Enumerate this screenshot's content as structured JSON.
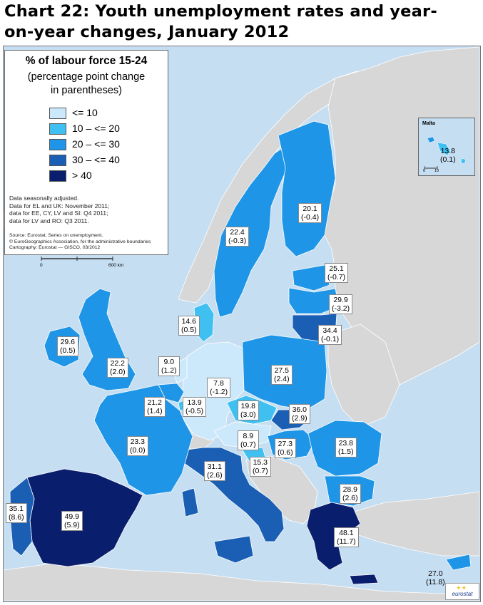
{
  "title": "Chart 22: Youth unemployment rates and year-on-year changes, January 2012",
  "title_line1": "Chart 22: Youth unemployment rates and year-",
  "title_line2": "on-year changes, January 2012",
  "colors": {
    "sea": "#c6def2",
    "non_eu": "#d7d7d7",
    "le10": "#cce9fb",
    "c10_20": "#3fc0f0",
    "c20_30": "#1e95e6",
    "c30_40": "#1a5fb4",
    "gt40": "#0a1e6e"
  },
  "legend": {
    "title": "% of labour force 15-24",
    "subtitle1": "(percentage point change",
    "subtitle2": "in parentheses)",
    "items": [
      {
        "label": "<= 10",
        "color": "#cce9fb"
      },
      {
        "label": "10 – <= 20",
        "color": "#3fc0f0"
      },
      {
        "label": "20 – <= 30",
        "color": "#1e95e6"
      },
      {
        "label": "30 – <= 40",
        "color": "#1a5fb4"
      },
      {
        "label": "> 40",
        "color": "#0a1e6e"
      }
    ],
    "notes": [
      "Data seasonally adjusted.",
      "Data for EL and UK: November 2011;",
      "data for EE, CY, LV and SI: Q4 2011;",
      "data for LV and RO: Q3 2011."
    ],
    "source": [
      "Source: Eurostat, Series on unemployment.",
      "© EuroGeographics Association, for the administrative boundaries",
      "Cartography: Eurostat — GISCO, 03/2012"
    ]
  },
  "scale": {
    "zero": "0",
    "end": "600 km"
  },
  "inset": {
    "title": "Malta",
    "value": "13.8",
    "change": "(0.1)",
    "scale_zero": "0",
    "scale_end": "10"
  },
  "logo": "eurostat",
  "countries": [
    {
      "id": "IE",
      "value": "29.6",
      "change": "(0.5)",
      "color": "#1e95e6"
    },
    {
      "id": "UK",
      "value": "22.2",
      "change": "(2.0)",
      "color": "#1e95e6"
    },
    {
      "id": "PT",
      "value": "35.1",
      "change": "(8.6)",
      "color": "#1a5fb4"
    },
    {
      "id": "ES",
      "value": "49.9",
      "change": "(5.9)",
      "color": "#0a1e6e"
    },
    {
      "id": "FR",
      "value": "23.3",
      "change": "(0.0)",
      "color": "#1e95e6"
    },
    {
      "id": "BE",
      "value": "21.2",
      "change": "(1.4)",
      "color": "#1e95e6"
    },
    {
      "id": "NL",
      "value": "9.0",
      "change": "(1.2)",
      "color": "#cce9fb"
    },
    {
      "id": "LU",
      "value": "13.9",
      "change": "(-0.5)",
      "color": "#3fc0f0"
    },
    {
      "id": "DE",
      "value": "7.8",
      "change": "(-1.2)",
      "color": "#cce9fb"
    },
    {
      "id": "DK",
      "value": "14.6",
      "change": "(0.5)",
      "color": "#3fc0f0"
    },
    {
      "id": "SE",
      "value": "22.4",
      "change": "(-0.3)",
      "color": "#1e95e6"
    },
    {
      "id": "FI",
      "value": "20.1",
      "change": "(-0.4)",
      "color": "#1e95e6"
    },
    {
      "id": "EE",
      "value": "25.1",
      "change": "(-0.7)",
      "color": "#1e95e6"
    },
    {
      "id": "LV",
      "value": "29.9",
      "change": "(-3.2)",
      "color": "#1e95e6"
    },
    {
      "id": "LT",
      "value": "34.4",
      "change": "(-0.1)",
      "color": "#1a5fb4"
    },
    {
      "id": "PL",
      "value": "27.5",
      "change": "(2.4)",
      "color": "#1e95e6"
    },
    {
      "id": "CZ",
      "value": "19.8",
      "change": "(3.0)",
      "color": "#3fc0f0"
    },
    {
      "id": "SK",
      "value": "36.0",
      "change": "(2.9)",
      "color": "#1a5fb4"
    },
    {
      "id": "AT",
      "value": "8.9",
      "change": "(0.7)",
      "color": "#cce9fb"
    },
    {
      "id": "HU",
      "value": "27.3",
      "change": "(0.6)",
      "color": "#1e95e6"
    },
    {
      "id": "SI",
      "value": "15.3",
      "change": "(0.7)",
      "color": "#3fc0f0"
    },
    {
      "id": "IT",
      "value": "31.1",
      "change": "(2.6)",
      "color": "#1a5fb4"
    },
    {
      "id": "RO",
      "value": "23.8",
      "change": "(1.5)",
      "color": "#1e95e6"
    },
    {
      "id": "BG",
      "value": "28.9",
      "change": "(2.6)",
      "color": "#1e95e6"
    },
    {
      "id": "EL",
      "value": "48.1",
      "change": "(11.7)",
      "color": "#0a1e6e"
    },
    {
      "id": "CY",
      "value": "27.0",
      "change": "(11.8)",
      "color": "#1e95e6"
    }
  ]
}
